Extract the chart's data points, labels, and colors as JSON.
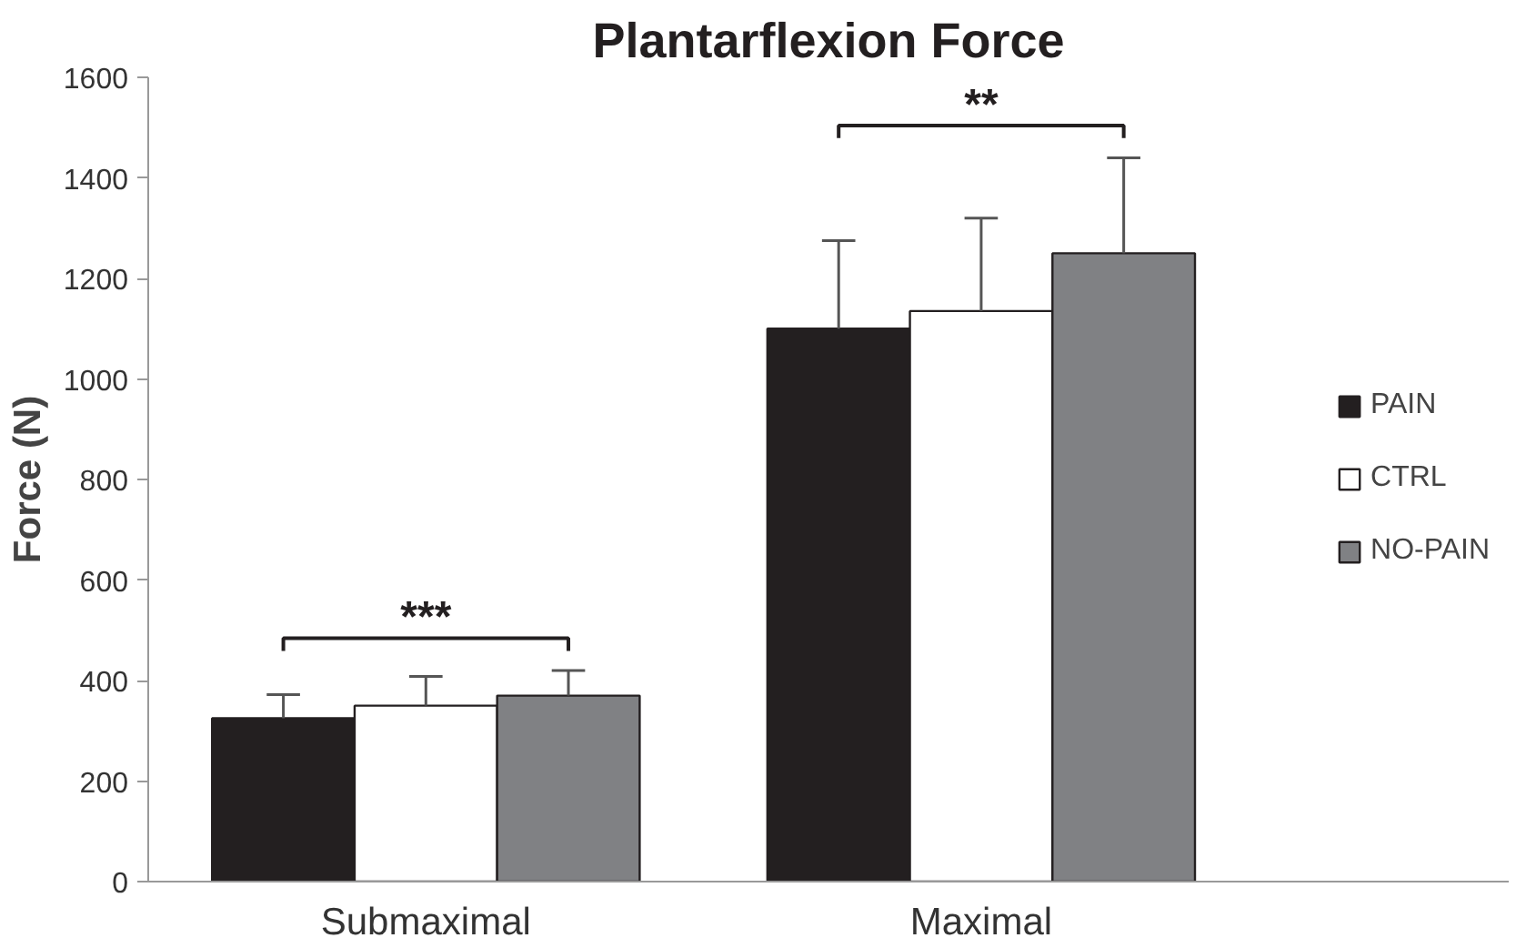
{
  "chart_data": {
    "type": "bar",
    "title": "Plantarflexion Force",
    "ylabel": "Force (N)",
    "categories": [
      "Submaximal",
      "Maximal"
    ],
    "series": [
      {
        "name": "PAIN",
        "color": "#231f20",
        "values": [
          325,
          1100
        ],
        "errors": [
          [
            325,
            372
          ],
          [
            1100,
            1275
          ]
        ]
      },
      {
        "name": "CTRL",
        "color": "#ffffff",
        "values": [
          350,
          1135
        ],
        "errors": [
          [
            350,
            408
          ],
          [
            1135,
            1320
          ]
        ]
      },
      {
        "name": "NO-PAIN",
        "color": "#808184",
        "values": [
          370,
          1250
        ],
        "errors": [
          [
            370,
            420
          ],
          [
            1250,
            1440
          ]
        ]
      }
    ],
    "annotations": [
      "***",
      "**"
    ],
    "ylim": [
      0,
      1600
    ],
    "yticks": [
      0,
      200,
      400,
      600,
      800,
      1000,
      1200,
      1400,
      1600
    ],
    "grid": false,
    "legend": "right"
  }
}
